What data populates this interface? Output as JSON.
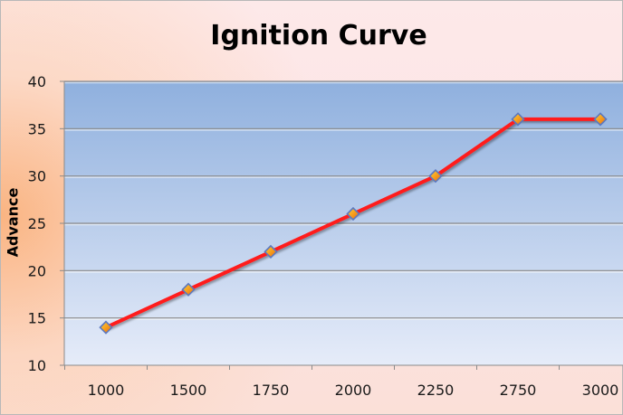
{
  "chart_data": {
    "type": "line",
    "title": "Ignition Curve",
    "xlabel": "",
    "ylabel": "Advance",
    "categories": [
      "1000",
      "1500",
      "1750",
      "2000",
      "2250",
      "2750",
      "3000"
    ],
    "series": [
      {
        "values": [
          14,
          18,
          22,
          26,
          30,
          36,
          36
        ]
      }
    ],
    "ylim": [
      10,
      40
    ],
    "yticks": [
      10,
      15,
      20,
      25,
      30,
      35,
      40
    ],
    "grid": true,
    "legend": "none",
    "colors": {
      "line": "#ff1a1a",
      "marker_fill": "#f59a1b",
      "marker_stroke": "#5b78c0",
      "plot_top": "#8fb0de",
      "plot_bottom": "#e6ecf9",
      "gridline": "#8a8a8a"
    }
  }
}
